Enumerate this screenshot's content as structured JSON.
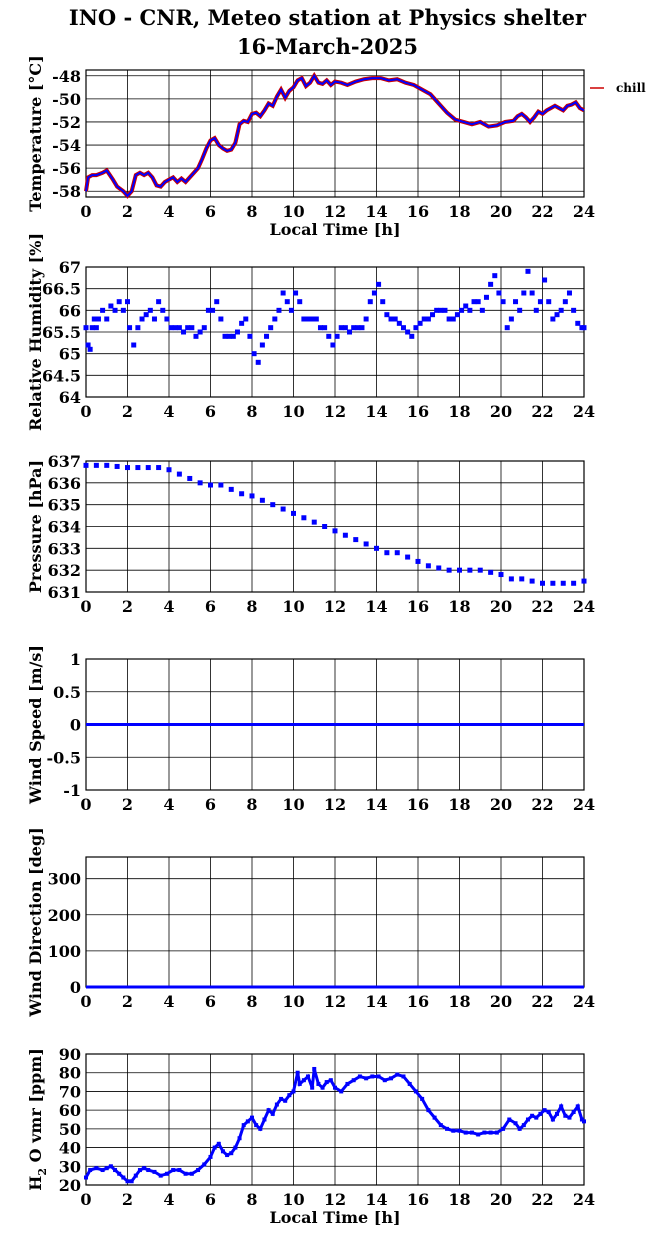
{
  "title_line1": "INO - CNR, Meteo station at Physics shelter",
  "title_line2": "16-March-2025",
  "x_ticks": [
    "0",
    "2",
    "4",
    "6",
    "8",
    "10",
    "12",
    "14",
    "16",
    "18",
    "20",
    "22",
    "24"
  ],
  "xlabel": "Local Time [h]",
  "colors": {
    "series_blue": "#0000ff",
    "series_red": "#cc0000",
    "grid": "#000000"
  },
  "chart_data": [
    {
      "type": "line",
      "ylabel": "Temperature [°C]",
      "ylim": [
        -58.5,
        -47.5
      ],
      "yticks": [
        -58,
        -56,
        -54,
        -52,
        -50,
        -48
      ],
      "ytick_labels": [
        "-58",
        "-56",
        "-54",
        "-52",
        "-50",
        "-48"
      ],
      "xlim": [
        0,
        24
      ],
      "show_xlabel": true,
      "grid": true,
      "legend": {
        "label": "chill",
        "placement": "outside-right",
        "color": "#cc0000"
      },
      "series": [
        {
          "color": "#0000ff",
          "x": [
            0,
            0.1,
            0.3,
            0.5,
            0.8,
            1.0,
            1.3,
            1.5,
            1.8,
            2.0,
            2.2,
            2.4,
            2.6,
            2.8,
            3.0,
            3.2,
            3.4,
            3.6,
            3.8,
            4.0,
            4.2,
            4.4,
            4.6,
            4.8,
            5.0,
            5.2,
            5.4,
            5.6,
            5.8,
            6.0,
            6.2,
            6.4,
            6.6,
            6.8,
            7.0,
            7.2,
            7.4,
            7.6,
            7.8,
            8.0,
            8.2,
            8.4,
            8.6,
            8.8,
            9.0,
            9.2,
            9.4,
            9.6,
            9.8,
            10.0,
            10.2,
            10.4,
            10.6,
            10.8,
            11.0,
            11.2,
            11.4,
            11.6,
            11.8,
            12.0,
            12.3,
            12.6,
            13.0,
            13.4,
            13.8,
            14.2,
            14.6,
            15.0,
            15.4,
            15.8,
            16.2,
            16.6,
            17.0,
            17.4,
            17.8,
            18.2,
            18.6,
            19.0,
            19.4,
            19.8,
            20.2,
            20.6,
            20.8,
            21.0,
            21.2,
            21.4,
            21.6,
            21.8,
            22.0,
            22.2,
            22.4,
            22.6,
            22.8,
            23.0,
            23.2,
            23.4,
            23.6,
            23.8,
            24.0
          ],
          "y": [
            -58.0,
            -56.8,
            -56.6,
            -56.6,
            -56.4,
            -56.2,
            -57.0,
            -57.6,
            -58.0,
            -58.4,
            -58.0,
            -56.6,
            -56.4,
            -56.6,
            -56.4,
            -56.8,
            -57.5,
            -57.6,
            -57.2,
            -57.0,
            -56.8,
            -57.2,
            -56.9,
            -57.2,
            -56.8,
            -56.4,
            -56.0,
            -55.2,
            -54.3,
            -53.6,
            -53.4,
            -54.0,
            -54.3,
            -54.5,
            -54.4,
            -53.8,
            -52.2,
            -51.9,
            -52.0,
            -51.3,
            -51.2,
            -51.5,
            -51.0,
            -50.4,
            -50.6,
            -49.8,
            -49.2,
            -49.9,
            -49.3,
            -49.0,
            -48.4,
            -48.2,
            -48.9,
            -48.6,
            -48.0,
            -48.6,
            -48.7,
            -48.4,
            -48.8,
            -48.5,
            -48.6,
            -48.8,
            -48.5,
            -48.3,
            -48.2,
            -48.2,
            -48.4,
            -48.3,
            -48.6,
            -48.8,
            -49.2,
            -49.6,
            -50.4,
            -51.2,
            -51.8,
            -52.0,
            -52.2,
            -52.0,
            -52.4,
            -52.3,
            -52.0,
            -51.9,
            -51.5,
            -51.3,
            -51.6,
            -52.0,
            -51.6,
            -51.1,
            -51.3,
            -51.0,
            -50.8,
            -50.6,
            -50.8,
            -51.0,
            -50.6,
            -50.5,
            -50.3,
            -50.8,
            -51.0
          ]
        }
      ]
    },
    {
      "type": "scatter",
      "ylabel": "Relative Humidity [%]",
      "ylim": [
        64,
        67
      ],
      "yticks": [
        64,
        64.5,
        65,
        65.5,
        66,
        66.5,
        67
      ],
      "ytick_labels": [
        "64",
        "64.5",
        "65",
        "65.5",
        "66",
        "66.5",
        "67"
      ],
      "xlim": [
        0,
        24
      ],
      "show_xlabel": false,
      "grid": true,
      "series": [
        {
          "color": "#0000ff",
          "x": [
            0,
            0.1,
            0.2,
            0.3,
            0.4,
            0.5,
            0.6,
            0.8,
            1.0,
            1.2,
            1.4,
            1.6,
            1.8,
            2.0,
            2.1,
            2.3,
            2.5,
            2.7,
            2.9,
            3.1,
            3.3,
            3.5,
            3.7,
            3.9,
            4.1,
            4.3,
            4.5,
            4.7,
            4.9,
            5.1,
            5.3,
            5.5,
            5.7,
            5.9,
            6.1,
            6.3,
            6.5,
            6.7,
            6.9,
            7.1,
            7.3,
            7.5,
            7.7,
            7.9,
            8.1,
            8.3,
            8.5,
            8.7,
            8.9,
            9.1,
            9.3,
            9.5,
            9.7,
            9.9,
            10.1,
            10.3,
            10.5,
            10.7,
            10.9,
            11.1,
            11.3,
            11.5,
            11.7,
            11.9,
            12.1,
            12.3,
            12.5,
            12.7,
            12.9,
            13.1,
            13.3,
            13.5,
            13.7,
            13.9,
            14.1,
            14.3,
            14.5,
            14.7,
            14.9,
            15.1,
            15.3,
            15.5,
            15.7,
            15.9,
            16.1,
            16.3,
            16.5,
            16.7,
            16.9,
            17.1,
            17.3,
            17.5,
            17.7,
            17.9,
            18.1,
            18.3,
            18.5,
            18.7,
            18.9,
            19.1,
            19.3,
            19.5,
            19.7,
            19.9,
            20.1,
            20.3,
            20.5,
            20.7,
            20.9,
            21.1,
            21.3,
            21.5,
            21.7,
            21.9,
            22.1,
            22.3,
            22.5,
            22.7,
            22.9,
            23.1,
            23.3,
            23.5,
            23.7,
            23.9,
            24.0
          ],
          "y": [
            65.6,
            65.2,
            65.1,
            65.6,
            65.8,
            65.6,
            65.8,
            66.0,
            65.8,
            66.1,
            66.0,
            66.2,
            66.0,
            66.2,
            65.6,
            65.2,
            65.6,
            65.8,
            65.9,
            66.0,
            65.8,
            66.2,
            66.0,
            65.8,
            65.6,
            65.6,
            65.6,
            65.5,
            65.6,
            65.6,
            65.4,
            65.5,
            65.6,
            66.0,
            66.0,
            66.2,
            65.8,
            65.4,
            65.4,
            65.4,
            65.5,
            65.7,
            65.8,
            65.4,
            65.0,
            64.8,
            65.2,
            65.4,
            65.6,
            65.8,
            66.0,
            66.4,
            66.2,
            66.0,
            66.4,
            66.2,
            65.8,
            65.8,
            65.8,
            65.8,
            65.6,
            65.6,
            65.4,
            65.2,
            65.4,
            65.6,
            65.6,
            65.5,
            65.6,
            65.6,
            65.6,
            65.8,
            66.2,
            66.4,
            66.6,
            66.2,
            65.9,
            65.8,
            65.8,
            65.7,
            65.6,
            65.5,
            65.4,
            65.6,
            65.7,
            65.8,
            65.8,
            65.9,
            66.0,
            66.0,
            66.0,
            65.8,
            65.8,
            65.9,
            66.0,
            66.1,
            66.0,
            66.2,
            66.2,
            66.0,
            66.3,
            66.6,
            66.8,
            66.4,
            66.2,
            65.6,
            65.8,
            66.2,
            66.0,
            66.4,
            66.9,
            66.4,
            66.0,
            66.2,
            66.7,
            66.2,
            65.8,
            65.9,
            66.0,
            66.2,
            66.4,
            66.0,
            65.7,
            65.6,
            65.6
          ],
          "note": ""
        }
      ]
    },
    {
      "type": "scatter",
      "ylabel": "Pressure [hPa]",
      "ylim": [
        631,
        637
      ],
      "yticks": [
        631,
        632,
        633,
        634,
        635,
        636,
        637
      ],
      "ytick_labels": [
        "631",
        "632",
        "633",
        "634",
        "635",
        "636",
        "637"
      ],
      "xlim": [
        0,
        24
      ],
      "show_xlabel": false,
      "grid": true,
      "series": [
        {
          "color": "#0000ff",
          "x": [
            0,
            0.5,
            1.0,
            1.5,
            2.0,
            2.5,
            3.0,
            3.5,
            4.0,
            4.5,
            5.0,
            5.5,
            6.0,
            6.5,
            7.0,
            7.5,
            8.0,
            8.5,
            9.0,
            9.5,
            10.0,
            10.5,
            11.0,
            11.5,
            12.0,
            12.5,
            13.0,
            13.5,
            14.0,
            14.5,
            15.0,
            15.5,
            16.0,
            16.5,
            17.0,
            17.5,
            18.0,
            18.5,
            19.0,
            19.5,
            20.0,
            20.5,
            21.0,
            21.5,
            22.0,
            22.5,
            23.0,
            23.5,
            24.0
          ],
          "y": [
            636.8,
            636.8,
            636.8,
            636.75,
            636.7,
            636.7,
            636.7,
            636.7,
            636.6,
            636.4,
            636.2,
            636.0,
            635.9,
            635.9,
            635.7,
            635.5,
            635.4,
            635.2,
            635.0,
            634.8,
            634.6,
            634.4,
            634.2,
            634.0,
            633.8,
            633.6,
            633.4,
            633.2,
            633.0,
            632.8,
            632.8,
            632.6,
            632.4,
            632.2,
            632.1,
            632.0,
            632.0,
            632.0,
            632.0,
            631.9,
            631.8,
            631.6,
            631.6,
            631.5,
            631.4,
            631.4,
            631.4,
            631.4,
            631.5
          ]
        }
      ]
    },
    {
      "type": "line",
      "ylabel": "Wind Speed [m/s]",
      "ylim": [
        -1,
        1
      ],
      "yticks": [
        -1,
        -0.5,
        0,
        0.5,
        1
      ],
      "ytick_labels": [
        "-1",
        "-0.5",
        "0",
        "0.5",
        "1"
      ],
      "xlim": [
        0,
        24
      ],
      "show_xlabel": false,
      "grid": true,
      "series": [
        {
          "color": "#0000ff",
          "x": [
            0,
            24
          ],
          "y": [
            0,
            0
          ]
        }
      ]
    },
    {
      "type": "line",
      "ylabel": "Wind Direction [deg]",
      "ylim": [
        0,
        360
      ],
      "yticks": [
        0,
        100,
        200,
        300
      ],
      "ytick_labels": [
        "0",
        "100",
        "200",
        "300"
      ],
      "xlim": [
        0,
        24
      ],
      "show_xlabel": false,
      "grid": true,
      "series": [
        {
          "color": "#0000ff",
          "x": [
            0,
            24
          ],
          "y": [
            0,
            0
          ]
        }
      ]
    },
    {
      "type": "line",
      "ylabel": "H2O vmr [ppm]",
      "ylim": [
        20,
        90
      ],
      "yticks": [
        20,
        30,
        40,
        50,
        60,
        70,
        80,
        90
      ],
      "ytick_labels": [
        "20",
        "30",
        "40",
        "50",
        "60",
        "70",
        "80",
        "90"
      ],
      "xlim": [
        0,
        24
      ],
      "show_xlabel": true,
      "grid": true,
      "series": [
        {
          "color": "#0000ff",
          "x": [
            0,
            0.2,
            0.5,
            0.8,
            1.0,
            1.2,
            1.4,
            1.6,
            1.8,
            2.0,
            2.2,
            2.4,
            2.6,
            2.8,
            3.0,
            3.3,
            3.6,
            3.9,
            4.2,
            4.5,
            4.8,
            5.1,
            5.4,
            5.7,
            6.0,
            6.2,
            6.4,
            6.6,
            6.8,
            7.0,
            7.2,
            7.4,
            7.6,
            7.8,
            8.0,
            8.2,
            8.4,
            8.6,
            8.8,
            9.0,
            9.2,
            9.4,
            9.6,
            9.8,
            10.0,
            10.2,
            10.3,
            10.5,
            10.7,
            10.9,
            11.0,
            11.2,
            11.4,
            11.6,
            11.8,
            12.0,
            12.3,
            12.6,
            12.9,
            13.2,
            13.5,
            13.8,
            14.1,
            14.4,
            14.7,
            15.0,
            15.3,
            15.6,
            15.9,
            16.2,
            16.5,
            16.8,
            17.1,
            17.4,
            17.7,
            18.0,
            18.3,
            18.6,
            18.9,
            19.2,
            19.5,
            19.8,
            20.1,
            20.4,
            20.7,
            20.9,
            21.1,
            21.3,
            21.5,
            21.7,
            21.9,
            22.1,
            22.3,
            22.5,
            22.7,
            22.9,
            23.1,
            23.3,
            23.5,
            23.7,
            23.9,
            24.0
          ],
          "y": [
            24,
            28,
            29,
            28,
            29,
            30,
            28,
            26,
            24,
            22,
            22,
            25,
            28,
            29,
            28,
            27,
            25,
            26,
            28,
            28,
            26,
            26,
            28,
            31,
            35,
            40,
            42,
            38,
            36,
            37,
            40,
            45,
            52,
            54,
            56,
            52,
            50,
            55,
            60,
            58,
            63,
            66,
            65,
            68,
            70,
            80,
            74,
            76,
            78,
            72,
            82,
            74,
            72,
            75,
            76,
            72,
            70,
            74,
            76,
            78,
            77,
            78,
            78,
            76,
            77,
            79,
            78,
            74,
            70,
            66,
            60,
            56,
            52,
            50,
            49,
            49,
            48,
            48,
            47,
            48,
            48,
            48,
            50,
            55,
            53,
            50,
            52,
            55,
            57,
            56,
            58,
            60,
            59,
            55,
            58,
            62,
            57,
            56,
            59,
            62,
            55,
            54
          ]
        }
      ]
    }
  ]
}
